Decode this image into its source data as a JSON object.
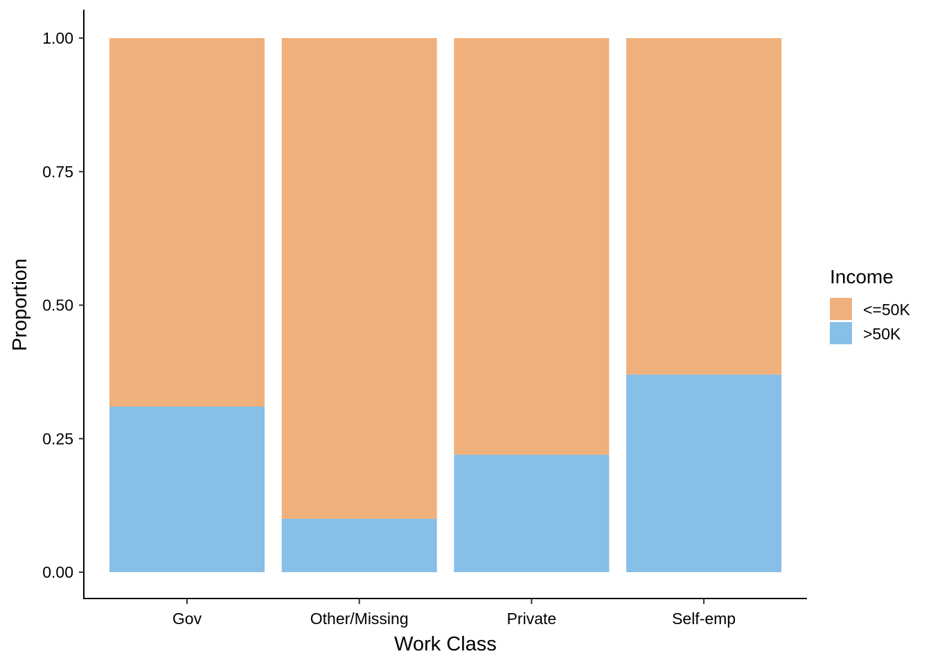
{
  "chart_data": {
    "type": "bar",
    "stacked": true,
    "categories": [
      "Gov",
      "Other/Missing",
      "Private",
      "Self-emp"
    ],
    "series": [
      {
        "name": ">50K",
        "color": "#87BFE7",
        "values": [
          0.31,
          0.1,
          0.22,
          0.37
        ]
      },
      {
        "name": "<=50K",
        "color": "#F0B07B",
        "values": [
          0.69,
          0.9,
          0.78,
          0.63
        ]
      }
    ],
    "xlabel": "Work Class",
    "ylabel": "Proportion",
    "ylim": [
      -0.05,
      1.0
    ],
    "yticks": [
      "0.00",
      "0.25",
      "0.50",
      "0.75",
      "1.00"
    ],
    "ytick_values": [
      0,
      0.25,
      0.5,
      0.75,
      1.0
    ],
    "legend": {
      "title": "Income",
      "position": "right",
      "entries": [
        {
          "label": "<=50K",
          "color": "#F0B07B"
        },
        {
          "label": ">50K",
          "color": "#87BFE7"
        }
      ]
    },
    "grid": false
  }
}
